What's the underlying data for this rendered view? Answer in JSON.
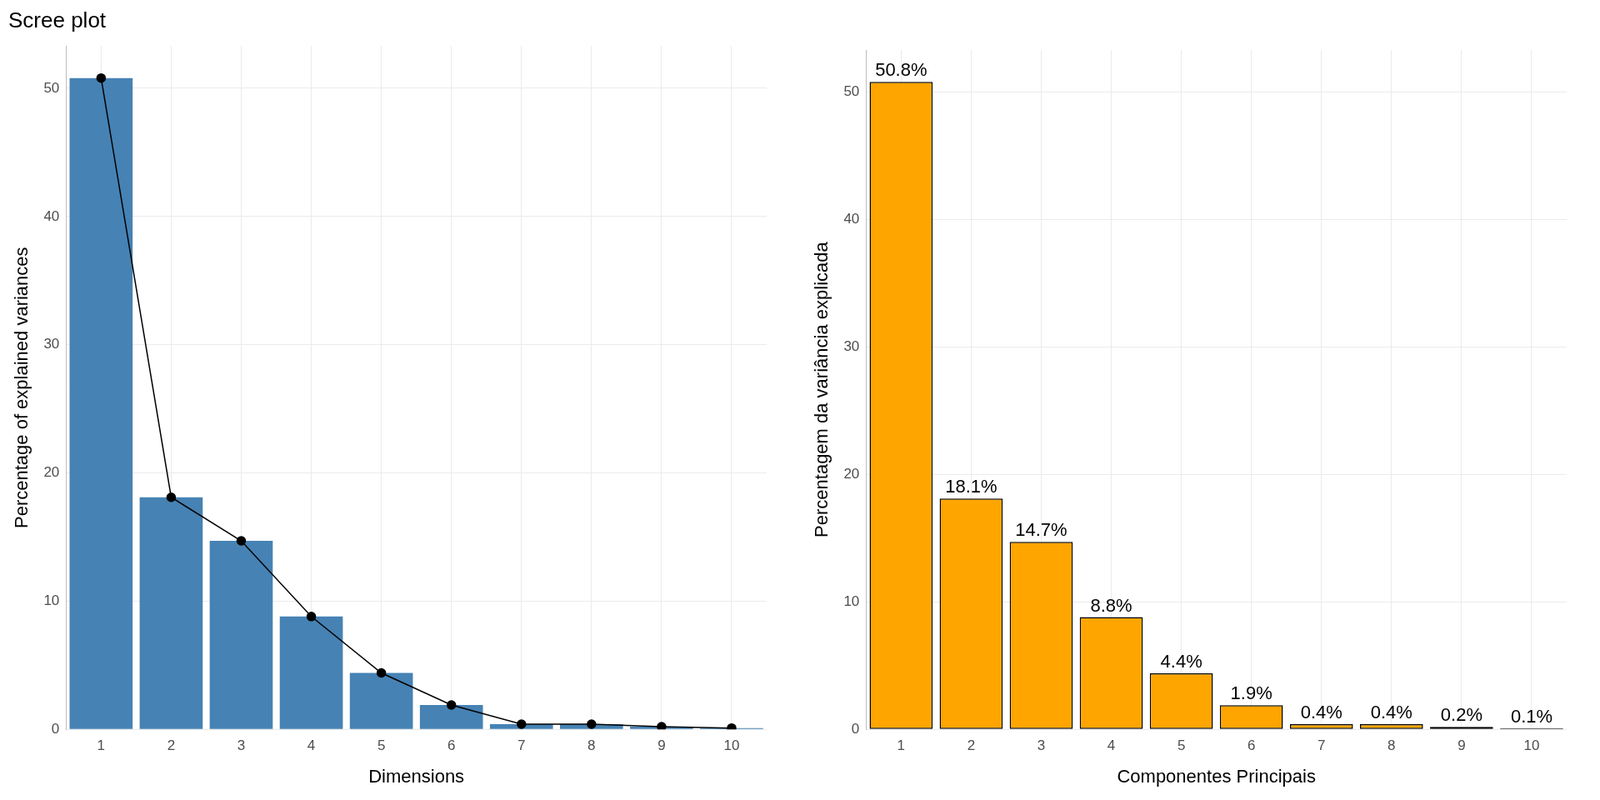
{
  "chart_data": [
    {
      "type": "bar",
      "title": "Scree plot",
      "x_label": "Dimensions",
      "y_label": "Percentage of explained variances",
      "categories": [
        "1",
        "2",
        "3",
        "4",
        "5",
        "6",
        "7",
        "8",
        "9",
        "10"
      ],
      "series": [
        {
          "type": "bar",
          "color": "#4682b4",
          "values": [
            50.8,
            18.1,
            14.7,
            8.8,
            4.4,
            1.9,
            0.4,
            0.4,
            0.2,
            0.1
          ]
        },
        {
          "type": "line",
          "color": "#000000",
          "marker": "circle",
          "line_style": "solid",
          "values": [
            50.8,
            18.1,
            14.7,
            8.8,
            4.4,
            1.9,
            0.4,
            0.4,
            0.2,
            0.1
          ]
        }
      ],
      "ylim": [
        0,
        53.3
      ],
      "yticks": [
        0,
        10,
        20,
        30,
        40,
        50
      ],
      "grid": true
    },
    {
      "type": "bar",
      "x_label": "Componentes Principais",
      "y_label": "Percentagem da variância explicada",
      "categories": [
        "1",
        "2",
        "3",
        "4",
        "5",
        "6",
        "7",
        "8",
        "9",
        "10"
      ],
      "values": [
        50.8,
        18.1,
        14.7,
        8.8,
        4.4,
        1.9,
        0.4,
        0.4,
        0.2,
        0.1
      ],
      "value_labels": [
        "50.8%",
        "18.1%",
        "14.7%",
        "8.8%",
        "4.4%",
        "1.9%",
        "0.4%",
        "0.4%",
        "0.2%",
        "0.1%"
      ],
      "data_labels": true,
      "color": "#ffa500",
      "ylim": [
        0,
        53.3
      ],
      "yticks": [
        0,
        10,
        20,
        30,
        40,
        50
      ],
      "grid": true
    }
  ]
}
